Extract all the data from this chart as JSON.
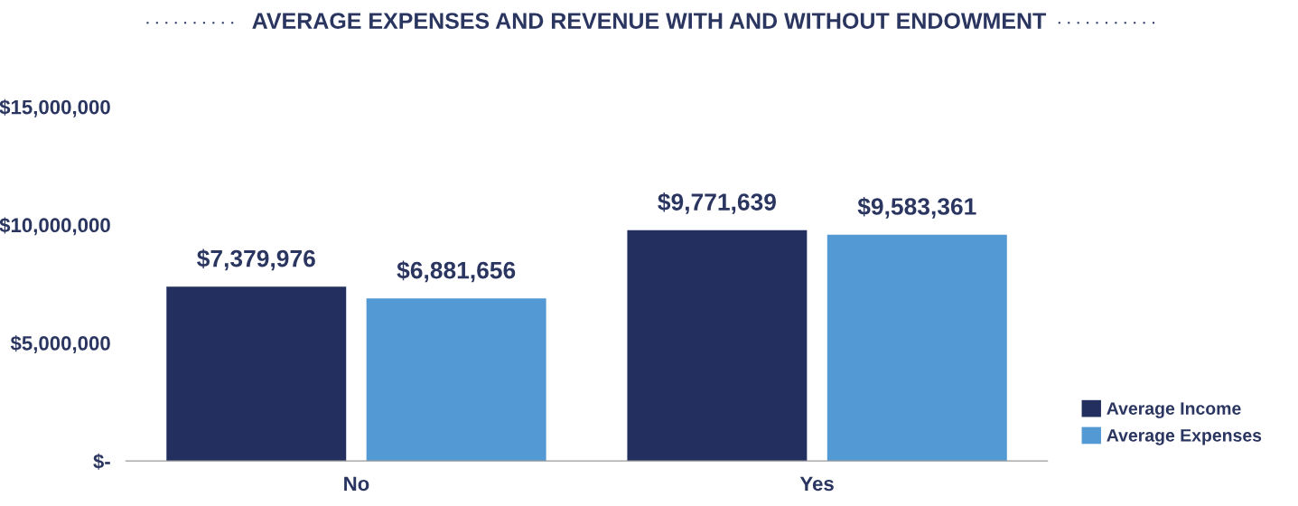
{
  "chart_data": {
    "type": "bar",
    "title": "AVERAGE EXPENSES AND REVENUE WITH AND WITHOUT ENDOWMENT",
    "categories": [
      "No",
      "Yes"
    ],
    "series": [
      {
        "name": "Average Income",
        "color": "#23305f",
        "values": [
          7379976,
          9771639
        ]
      },
      {
        "name": "Average Expenses",
        "color": "#5399d4",
        "values": [
          6881656,
          9583361
        ]
      }
    ],
    "ylim": [
      0,
      15000000
    ],
    "yticks": [
      {
        "value": 0,
        "label": "$-"
      },
      {
        "value": 5000000,
        "label": "$5,000,000"
      },
      {
        "value": 10000000,
        "label": "$10,000,000"
      },
      {
        "value": 15000000,
        "label": "$15,000,000"
      }
    ],
    "value_labels": [
      [
        "$7,379,976",
        "$9,771,639"
      ],
      [
        "$6,881,656",
        "$9,583,361"
      ]
    ],
    "grid": false,
    "legend": "bottom right"
  }
}
